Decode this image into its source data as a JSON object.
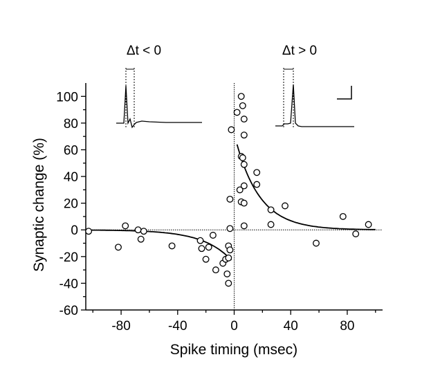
{
  "chart_data": {
    "type": "scatter",
    "xlabel": "Spike timing (msec)",
    "ylabel": "Synaptic change (%)",
    "xlim": [
      -105,
      105
    ],
    "ylim": [
      -60,
      110
    ],
    "x_ticks": [
      -80,
      -40,
      0,
      40,
      80
    ],
    "y_ticks": [
      100,
      80,
      60,
      40,
      20,
      0,
      -20,
      -40,
      -60
    ],
    "grid": false,
    "zero_lines": true,
    "insets": [
      {
        "label": "Δt < 0",
        "trace": "postsynaptic spike precedes presynaptic"
      },
      {
        "label": "Δt > 0",
        "trace": "presynaptic spike precedes postsynaptic"
      }
    ],
    "points": [
      {
        "x": -103,
        "y": -1
      },
      {
        "x": -82,
        "y": -13
      },
      {
        "x": -77,
        "y": 3
      },
      {
        "x": -68,
        "y": 0
      },
      {
        "x": -66,
        "y": -7
      },
      {
        "x": -64,
        "y": -1
      },
      {
        "x": -44,
        "y": -12
      },
      {
        "x": -24,
        "y": -8
      },
      {
        "x": -23,
        "y": -14
      },
      {
        "x": -20,
        "y": -22
      },
      {
        "x": -18,
        "y": -13
      },
      {
        "x": -15,
        "y": -4
      },
      {
        "x": -13,
        "y": -30
      },
      {
        "x": -8,
        "y": -25
      },
      {
        "x": -6,
        "y": -22
      },
      {
        "x": -5,
        "y": -33
      },
      {
        "x": -4,
        "y": -21
      },
      {
        "x": -4,
        "y": -40
      },
      {
        "x": -4,
        "y": -12
      },
      {
        "x": -3,
        "y": -15
      },
      {
        "x": -3,
        "y": 1
      },
      {
        "x": -3,
        "y": 23
      },
      {
        "x": -2,
        "y": 75
      },
      {
        "x": 2,
        "y": 88
      },
      {
        "x": 4,
        "y": 30
      },
      {
        "x": 5,
        "y": 100
      },
      {
        "x": 5,
        "y": 21
      },
      {
        "x": 5,
        "y": 55
      },
      {
        "x": 6,
        "y": 93
      },
      {
        "x": 6,
        "y": 54
      },
      {
        "x": 7,
        "y": 83
      },
      {
        "x": 7,
        "y": 71
      },
      {
        "x": 7,
        "y": 49
      },
      {
        "x": 7,
        "y": 33
      },
      {
        "x": 7,
        "y": 20
      },
      {
        "x": 7,
        "y": 3
      },
      {
        "x": 16,
        "y": 43
      },
      {
        "x": 16,
        "y": 34
      },
      {
        "x": 26,
        "y": 15
      },
      {
        "x": 26,
        "y": 4
      },
      {
        "x": 36,
        "y": 18
      },
      {
        "x": 58,
        "y": -10
      },
      {
        "x": 77,
        "y": 10
      },
      {
        "x": 86,
        "y": -3
      },
      {
        "x": 95,
        "y": 4
      }
    ],
    "fits": [
      {
        "name": "",
        "domain": [
          -103,
          -2
        ],
        "amplitude": -25,
        "tau": 20
      },
      {
        "name": "",
        "domain": [
          2,
          100
        ],
        "amplitude": 72,
        "tau": 17
      }
    ]
  }
}
